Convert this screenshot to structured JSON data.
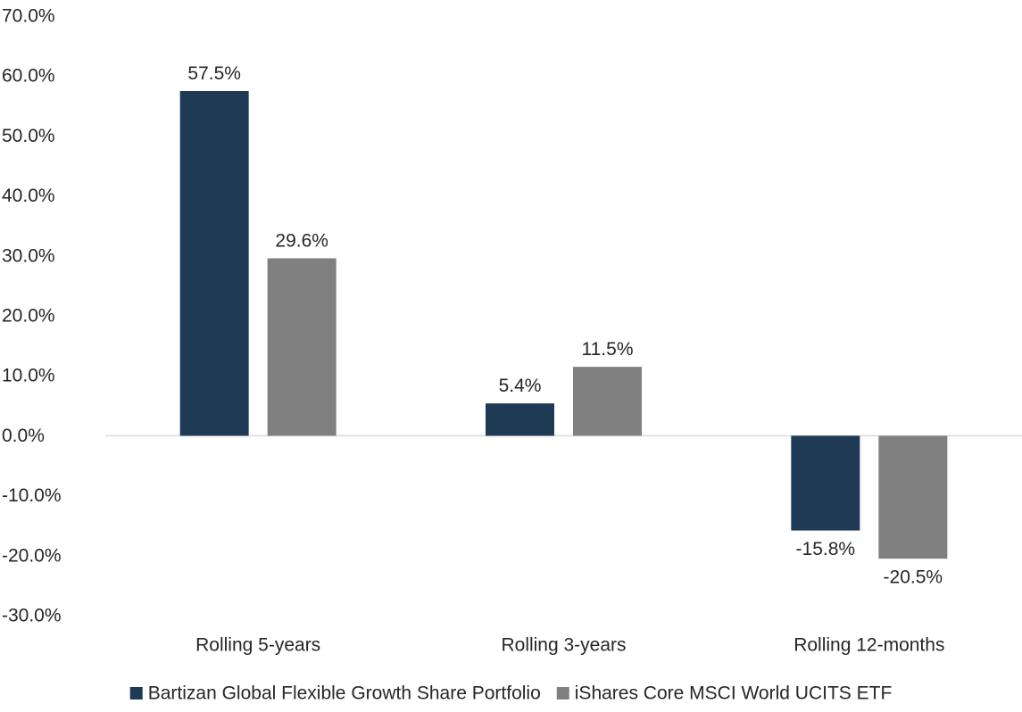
{
  "chart_data": {
    "type": "bar",
    "title": "",
    "xlabel": "",
    "ylabel": "",
    "categories": [
      "Rolling 5-years",
      "Rolling 3-years",
      "Rolling 12-months"
    ],
    "series": [
      {
        "name": "Bartizan Global Flexible Growth Share Portfolio",
        "color": "#1f3a54",
        "values": [
          57.5,
          5.4,
          -15.8
        ],
        "labels": [
          "57.5%",
          "5.4%",
          "-15.8%"
        ]
      },
      {
        "name": "iShares Core MSCI World UCITS ETF",
        "color": "#808080",
        "values": [
          29.6,
          11.5,
          -20.5
        ],
        "labels": [
          "29.6%",
          "11.5%",
          "-20.5%"
        ]
      }
    ],
    "ylim": [
      -30,
      70
    ],
    "y_ticks": [
      70,
      60,
      50,
      40,
      30,
      20,
      10,
      0,
      -10,
      -20,
      -30
    ],
    "y_tick_labels": [
      "70.0%",
      "60.0%",
      "50.0%",
      "40.0%",
      "30.0%",
      "20.0%",
      "10.0%",
      "0.0%",
      "-10.0%",
      "-20.0%",
      "-30.0%"
    ],
    "grid": false,
    "legend_position": "bottom",
    "zero_line_color": "#d9d9d9"
  }
}
